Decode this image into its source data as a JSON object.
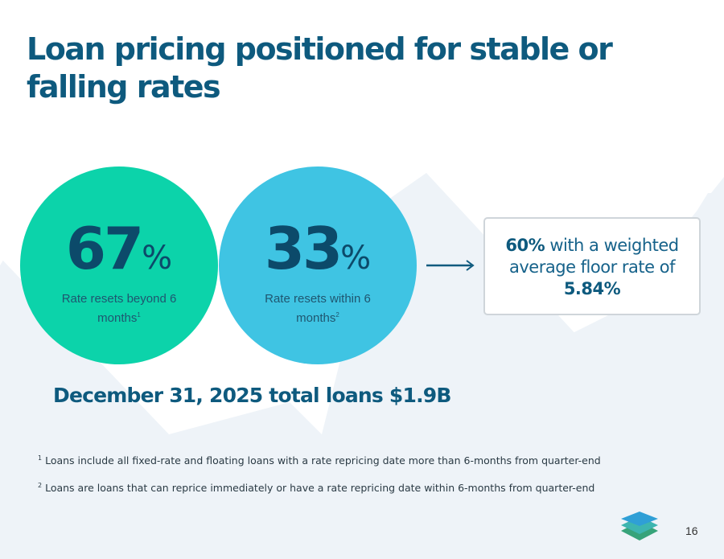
{
  "title": "Loan pricing positioned for stable or falling rates",
  "circles": [
    {
      "value": "67",
      "unit": "%",
      "label": "Rate resets beyond 6 months",
      "footnote_ref": "1"
    },
    {
      "value": "33",
      "unit": "%",
      "label": "Rate resets within 6 months",
      "footnote_ref": "2"
    }
  ],
  "callout": {
    "highlight": "60%",
    "text": "with a weighted average floor rate of",
    "rate": "5.84%"
  },
  "total": "December 31, 2025 total loans $1.9B",
  "footnotes": [
    {
      "ref": "1",
      "text": "Loans include all fixed-rate and floating loans with a rate repricing date more than 6-months from quarter-end"
    },
    {
      "ref": "2",
      "text": "Loans are loans that can reprice immediately or have a rate repricing date within 6-months from quarter-end"
    }
  ],
  "page_number": "16",
  "colors": {
    "title": "#0e5a7e",
    "green": "#0cd3aa",
    "blue": "#3fc4e3",
    "dark": "#0c4a6a",
    "bg": "#eef3f8"
  }
}
